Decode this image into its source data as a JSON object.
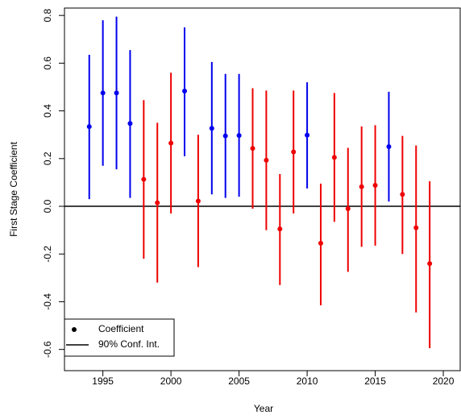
{
  "chart_data": {
    "type": "errorbar",
    "x_label": "Year",
    "y_label": "First Stage Coefficient",
    "x": [
      1994,
      1995,
      1996,
      1997,
      1998,
      1999,
      2000,
      2001,
      2002,
      2003,
      2004,
      2005,
      2006,
      2007,
      2008,
      2009,
      2010,
      2011,
      2012,
      2013,
      2014,
      2015,
      2016,
      2017,
      2018,
      2019
    ],
    "values": [
      0.334,
      0.475,
      0.475,
      0.347,
      0.113,
      0.015,
      0.265,
      0.483,
      0.022,
      0.327,
      0.295,
      0.297,
      0.243,
      0.193,
      -0.095,
      0.228,
      0.298,
      -0.155,
      0.205,
      -0.01,
      0.082,
      0.088,
      0.25,
      0.05,
      -0.09,
      -0.24
    ],
    "lower": [
      0.03,
      0.17,
      0.155,
      0.035,
      -0.22,
      -0.32,
      -0.03,
      0.21,
      -0.255,
      0.05,
      0.035,
      0.04,
      -0.01,
      -0.1,
      -0.33,
      -0.03,
      0.075,
      -0.415,
      -0.065,
      -0.275,
      -0.17,
      -0.165,
      0.02,
      -0.2,
      -0.445,
      -0.595
    ],
    "upper": [
      0.635,
      0.78,
      0.795,
      0.655,
      0.445,
      0.35,
      0.56,
      0.75,
      0.3,
      0.605,
      0.555,
      0.555,
      0.495,
      0.485,
      0.135,
      0.485,
      0.52,
      0.095,
      0.475,
      0.245,
      0.335,
      0.34,
      0.48,
      0.295,
      0.255,
      0.105
    ],
    "colors": [
      "#0000ee",
      "#0000ee",
      "#0000ee",
      "#0000ee",
      "#ee0000",
      "#ee0000",
      "#ee0000",
      "#0000ee",
      "#ee0000",
      "#0000ee",
      "#0000ee",
      "#0000ee",
      "#ee0000",
      "#ee0000",
      "#ee0000",
      "#ee0000",
      "#0000ee",
      "#ee0000",
      "#ee0000",
      "#ee0000",
      "#ee0000",
      "#ee0000",
      "#0000ee",
      "#ee0000",
      "#ee0000",
      "#ee0000"
    ],
    "xlim": [
      1992.18,
      2021.24
    ],
    "xticks": [
      1995,
      2000,
      2005,
      2010,
      2015,
      2020
    ],
    "ylim": [
      -0.689,
      0.831
    ],
    "yticks": [
      -0.6,
      -0.4,
      -0.2,
      {
        "value": 0,
        "label": "0.0"
      },
      0.2,
      0.4,
      0.6,
      0.8
    ],
    "reference_line": 0,
    "legend": {
      "position": "bottom-left",
      "point_label": "Coefficient",
      "line_label": "90% Conf. Int."
    }
  }
}
